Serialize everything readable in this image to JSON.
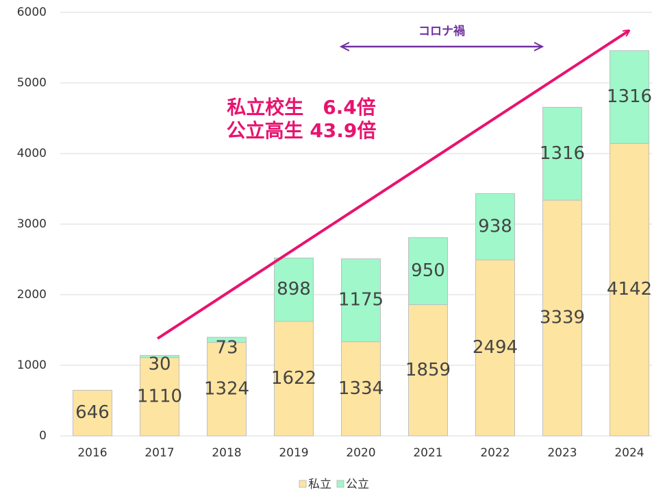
{
  "chart_data": {
    "type": "stacked_bar",
    "categories": [
      "2016",
      "2017",
      "2018",
      "2019",
      "2020",
      "2021",
      "2022",
      "2023",
      "2024"
    ],
    "series": [
      {
        "name": "私立",
        "color": "#fde4a1",
        "values": [
          646,
          1110,
          1324,
          1622,
          1334,
          1859,
          2494,
          3339,
          4142
        ]
      },
      {
        "name": "公立",
        "color": "#9ff7ca",
        "values": [
          null,
          30,
          73,
          898,
          1175,
          950,
          938,
          1316,
          1316
        ]
      }
    ],
    "ylim": [
      0,
      6000
    ],
    "yticks": [
      0,
      1000,
      2000,
      3000,
      4000,
      5000,
      6000
    ],
    "grid": true,
    "annotations": [
      "コロナ禍",
      "私立校生　6.4倍",
      "公立高生 43.9倍"
    ],
    "legend": "bottom"
  }
}
